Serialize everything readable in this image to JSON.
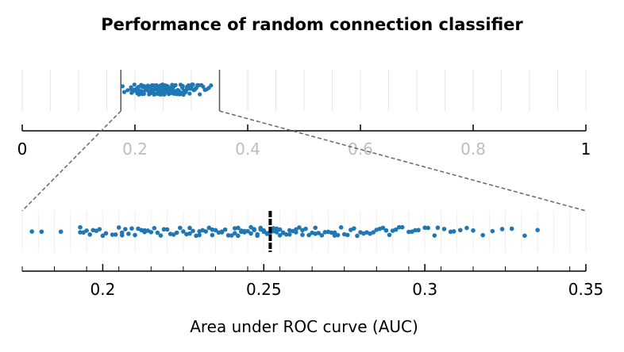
{
  "chart_data": {
    "type": "scatter",
    "title": "Performance of random connection classifier",
    "xlabel": "Area under ROC curve (AUC)",
    "ylabel": "",
    "point_color": "#1f77b4",
    "overview": {
      "xlim": [
        0,
        1
      ],
      "ticks": [
        0,
        0.2,
        0.4,
        0.6,
        0.8,
        1
      ],
      "tick_labels": [
        "0",
        "0.2",
        "0.4",
        "0.6",
        "0.8",
        "1"
      ],
      "faded_tick_labels": [
        "0.2",
        "0.4",
        "0.6",
        "0.8"
      ],
      "zoom_range": [
        0.175,
        0.35
      ]
    },
    "detail": {
      "xlim": [
        0.175,
        0.35
      ],
      "ticks": [
        0.2,
        0.25,
        0.3,
        0.35
      ],
      "tick_labels": [
        "0.2",
        "0.25",
        "0.3",
        "0.35"
      ],
      "mean": 0.252
    },
    "values": [
      0.178,
      0.181,
      0.187,
      0.193,
      0.193,
      0.194,
      0.195,
      0.196,
      0.197,
      0.198,
      0.199,
      0.2,
      0.201,
      0.203,
      0.204,
      0.205,
      0.206,
      0.206,
      0.207,
      0.208,
      0.209,
      0.21,
      0.211,
      0.212,
      0.213,
      0.213,
      0.214,
      0.215,
      0.216,
      0.217,
      0.218,
      0.219,
      0.22,
      0.221,
      0.222,
      0.223,
      0.224,
      0.225,
      0.226,
      0.227,
      0.227,
      0.228,
      0.229,
      0.23,
      0.23,
      0.231,
      0.232,
      0.233,
      0.234,
      0.234,
      0.235,
      0.236,
      0.237,
      0.237,
      0.238,
      0.239,
      0.24,
      0.241,
      0.241,
      0.242,
      0.242,
      0.243,
      0.243,
      0.244,
      0.244,
      0.245,
      0.246,
      0.246,
      0.247,
      0.247,
      0.248,
      0.248,
      0.249,
      0.249,
      0.25,
      0.25,
      0.251,
      0.251,
      0.252,
      0.252,
      0.253,
      0.253,
      0.254,
      0.254,
      0.255,
      0.255,
      0.256,
      0.256,
      0.257,
      0.258,
      0.258,
      0.259,
      0.26,
      0.26,
      0.261,
      0.262,
      0.262,
      0.263,
      0.264,
      0.265,
      0.266,
      0.266,
      0.267,
      0.268,
      0.269,
      0.27,
      0.271,
      0.272,
      0.272,
      0.273,
      0.274,
      0.275,
      0.276,
      0.277,
      0.278,
      0.279,
      0.28,
      0.281,
      0.282,
      0.283,
      0.284,
      0.285,
      0.286,
      0.287,
      0.288,
      0.289,
      0.29,
      0.291,
      0.292,
      0.293,
      0.295,
      0.296,
      0.297,
      0.298,
      0.3,
      0.301,
      0.303,
      0.304,
      0.306,
      0.308,
      0.309,
      0.311,
      0.313,
      0.315,
      0.318,
      0.321,
      0.324,
      0.327,
      0.331,
      0.335
    ]
  }
}
